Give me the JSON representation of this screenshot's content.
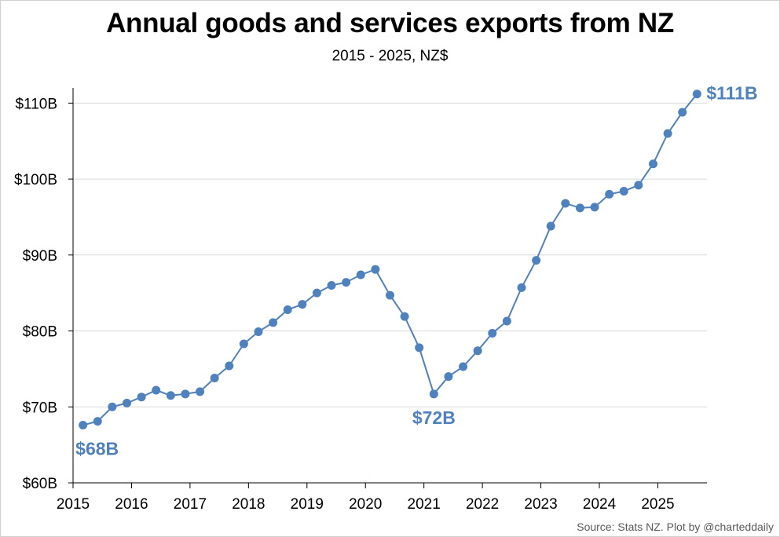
{
  "title": "Annual goods and services exports from NZ",
  "subtitle": "2015 - 2025, NZ$",
  "source": "Source: Stats NZ.  Plot by @charteddaily",
  "colors": {
    "series": "#4f81bd",
    "grid": "#d9d9d9",
    "axis": "#000000"
  },
  "chart_data": {
    "type": "line",
    "title": "Annual goods and services exports from NZ",
    "subtitle": "2015 - 2025, NZ$",
    "xlabel": "",
    "ylabel": "",
    "grid": true,
    "legend": "none",
    "x_range": [
      2015,
      2025.84
    ],
    "ylim": [
      60,
      112
    ],
    "y_ticks": [
      60,
      70,
      80,
      90,
      100,
      110
    ],
    "y_tick_labels": [
      "$60B",
      "$70B",
      "$80B",
      "$90B",
      "$100B",
      "$110B"
    ],
    "x_ticks": [
      2015,
      2016,
      2017,
      2018,
      2019,
      2020,
      2021,
      2022,
      2023,
      2024,
      2025
    ],
    "x_tick_labels": [
      "2015",
      "2016",
      "2017",
      "2018",
      "2019",
      "2020",
      "2021",
      "2022",
      "2023",
      "2024",
      "2025"
    ],
    "series": [
      {
        "color": "#4f81bd",
        "x": [
          2015.17,
          2015.42,
          2015.67,
          2015.92,
          2016.17,
          2016.42,
          2016.67,
          2016.92,
          2017.17,
          2017.42,
          2017.67,
          2017.92,
          2018.17,
          2018.42,
          2018.67,
          2018.92,
          2019.17,
          2019.42,
          2019.67,
          2019.92,
          2020.17,
          2020.42,
          2020.67,
          2020.92,
          2021.17,
          2021.42,
          2021.67,
          2021.92,
          2022.17,
          2022.42,
          2022.67,
          2022.92,
          2023.17,
          2023.42,
          2023.67,
          2023.92,
          2024.17,
          2024.42,
          2024.67,
          2024.92,
          2025.17,
          2025.42,
          2025.67
        ],
        "values": [
          67.6,
          68.1,
          70.0,
          70.5,
          71.3,
          72.2,
          71.5,
          71.7,
          72.0,
          73.8,
          75.4,
          78.3,
          79.9,
          81.1,
          82.8,
          83.5,
          85.0,
          86.0,
          86.4,
          87.4,
          88.1,
          84.7,
          81.9,
          77.8,
          71.7,
          74.0,
          75.3,
          77.4,
          79.7,
          81.3,
          85.7,
          89.3,
          93.8,
          96.8,
          96.2,
          96.3,
          98.0,
          98.4,
          99.2,
          102.0,
          106.0,
          108.8,
          111.2
        ]
      }
    ],
    "annotations": [
      {
        "text": "$68B",
        "x": 2015.17,
        "y": 67.6
      },
      {
        "text": "$72B",
        "x": 2021.17,
        "y": 71.7
      },
      {
        "text": "$111B",
        "x": 2025.67,
        "y": 111.2
      }
    ]
  }
}
